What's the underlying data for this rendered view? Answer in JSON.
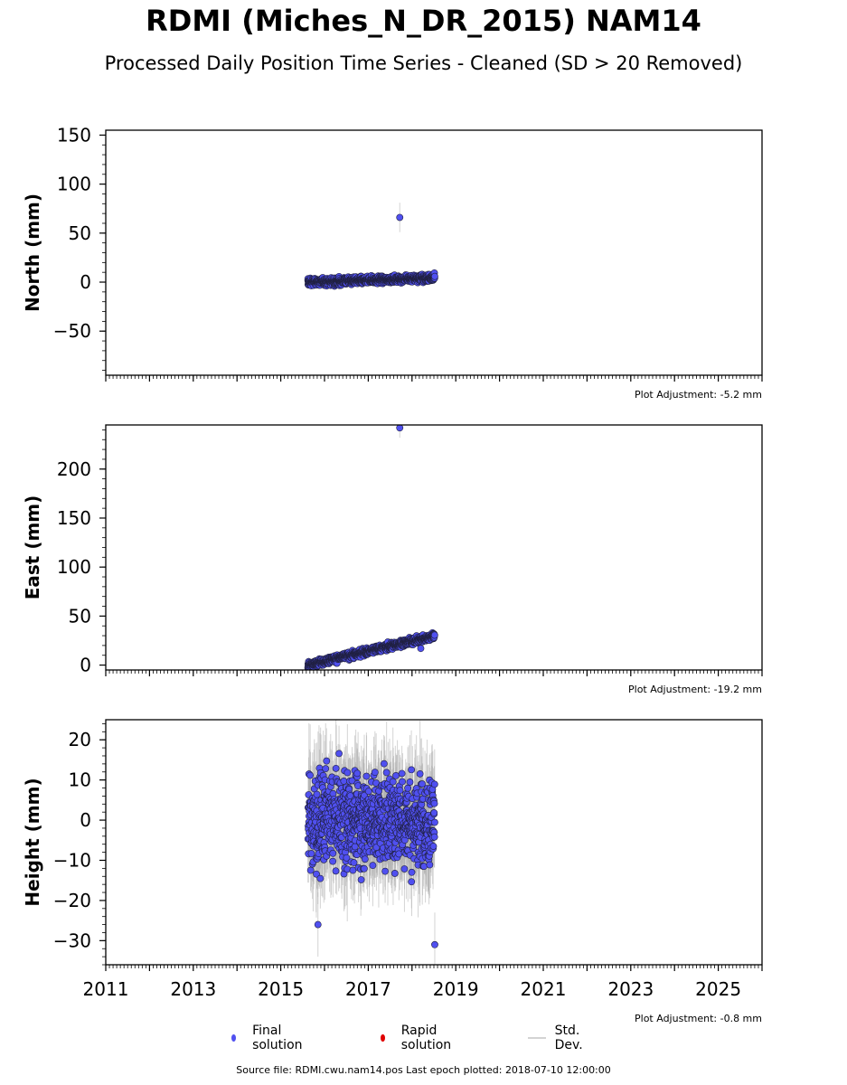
{
  "title": "RDMI (Miches_N_DR_2015) NAM14",
  "subtitle": "Processed Daily Position Time Series - Cleaned (SD > 20 Removed)",
  "legend": {
    "final": "Final solution",
    "rapid": "Rapid solution",
    "stddev": "Std. Dev."
  },
  "colors": {
    "final": "#5050f0",
    "rapid": "#e00000",
    "stddev": "#b0b0b0"
  },
  "footer": "Source file: RDMI.cwu.nam14.pos  Last epoch plotted: 2018-07-10 12:00:00",
  "chart_data": {
    "type": "scatter",
    "x_unit": "year",
    "xlim": [
      2011,
      2026
    ],
    "xticks": [
      2011,
      2013,
      2015,
      2017,
      2019,
      2021,
      2023,
      2025
    ],
    "data_range": [
      2015.62,
      2018.52
    ],
    "panels": [
      {
        "id": "north",
        "ylabel": "North (mm)",
        "ylim": [
          -95,
          155
        ],
        "yticks": [
          150,
          100,
          50,
          0,
          -50
        ],
        "ytick_labels": [
          "150",
          "100",
          "50",
          "0",
          "−50"
        ],
        "adjustment": "Plot Adjustment: -5.2 mm",
        "trend": {
          "start": 0,
          "slope": 1.5
        },
        "noise": 2.5,
        "sd": 3,
        "outliers": [
          {
            "x": 2017.72,
            "y": 66,
            "sd": 15
          }
        ]
      },
      {
        "id": "east",
        "ylabel": "East (mm)",
        "ylim": [
          -5,
          245
        ],
        "yticks": [
          200,
          150,
          100,
          50,
          0
        ],
        "ytick_labels": [
          "200",
          "150",
          "100",
          "50",
          "0"
        ],
        "adjustment": "Plot Adjustment: -19.2 mm",
        "trend": {
          "start": 0,
          "slope": 10.3
        },
        "noise": 2.5,
        "sd": 3,
        "outliers": [
          {
            "x": 2017.72,
            "y": 242,
            "sd": 10
          },
          {
            "x": 2018.2,
            "y": 17,
            "sd": 4
          }
        ]
      },
      {
        "id": "height",
        "ylabel": "Height (mm)",
        "ylim": [
          -36,
          25
        ],
        "yticks": [
          20,
          10,
          0,
          -10,
          -20,
          -30
        ],
        "ytick_labels": [
          "20",
          "10",
          "0",
          "−10",
          "−20",
          "−30"
        ],
        "adjustment": "Plot Adjustment: -0.8 mm",
        "trend": {
          "start": 0,
          "slope": 0
        },
        "noise": 8,
        "sd": 9,
        "outliers": [
          {
            "x": 2015.85,
            "y": -26,
            "sd": 8
          },
          {
            "x": 2018.52,
            "y": -31,
            "sd": 8
          }
        ]
      }
    ]
  }
}
